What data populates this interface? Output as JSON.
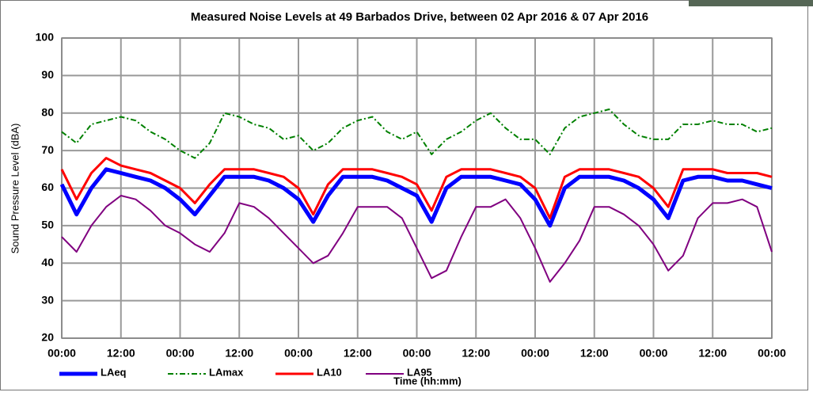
{
  "chart_data": {
    "type": "line",
    "title": "Measured Noise Levels at 49 Barbados Drive, between 02 Apr 2016 & 07 Apr 2016",
    "y_label": "Sound Pressure Level (dBA)",
    "x_label": "Time (hh:mm)",
    "categories": [
      "00:00",
      null,
      null,
      null,
      "12:00",
      null,
      null,
      null,
      "00:00",
      null,
      null,
      null,
      "12:00",
      null,
      null,
      null,
      "00:00",
      null,
      null,
      null,
      "12:00",
      null,
      null,
      null,
      "00:00",
      null,
      null,
      null,
      "12:00",
      null,
      null,
      null,
      "00:00",
      null,
      null,
      null,
      "12:00",
      null,
      null,
      null,
      "00:00",
      null,
      null,
      null,
      "12:00",
      null,
      null,
      null,
      "00:00"
    ],
    "ylim": [
      20,
      100
    ],
    "yticks": [
      20,
      30,
      40,
      50,
      60,
      70,
      80,
      90,
      100
    ],
    "grid": true,
    "series": [
      {
        "name": "LAeq",
        "color": "#0000ff",
        "width": 5,
        "dash": "solid",
        "values": [
          61,
          53,
          60,
          65,
          64,
          63,
          62,
          60,
          57,
          53,
          58,
          63,
          63,
          63,
          62,
          60,
          57,
          51,
          58,
          63,
          63,
          63,
          62,
          60,
          58,
          51,
          60,
          63,
          63,
          63,
          62,
          61,
          57,
          50,
          60,
          63,
          63,
          63,
          62,
          60,
          57,
          52,
          62,
          63,
          63,
          62,
          62,
          61,
          60
        ]
      },
      {
        "name": "LAmax",
        "color": "#008000",
        "width": 2,
        "dash": "dashdot",
        "values": [
          75,
          72,
          77,
          78,
          79,
          78,
          75,
          73,
          70,
          68,
          72,
          80,
          79,
          77,
          76,
          73,
          74,
          70,
          72,
          76,
          78,
          79,
          75,
          73,
          75,
          69,
          73,
          75,
          78,
          80,
          76,
          73,
          73,
          69,
          76,
          79,
          80,
          81,
          77,
          74,
          73,
          73,
          77,
          77,
          78,
          77,
          77,
          75,
          76
        ]
      },
      {
        "name": "LA10",
        "color": "#ff0000",
        "width": 3,
        "dash": "solid",
        "values": [
          65,
          57,
          64,
          68,
          66,
          65,
          64,
          62,
          60,
          56,
          61,
          65,
          65,
          65,
          64,
          63,
          60,
          53,
          61,
          65,
          65,
          65,
          64,
          63,
          61,
          54,
          63,
          65,
          65,
          65,
          64,
          63,
          60,
          52,
          63,
          65,
          65,
          65,
          64,
          63,
          60,
          55,
          65,
          65,
          65,
          64,
          64,
          64,
          63
        ]
      },
      {
        "name": "LA95",
        "color": "#800080",
        "width": 2,
        "dash": "solid",
        "values": [
          47,
          43,
          50,
          55,
          58,
          57,
          54,
          50,
          48,
          45,
          43,
          48,
          56,
          55,
          52,
          48,
          44,
          40,
          42,
          48,
          55,
          55,
          55,
          52,
          44,
          36,
          38,
          47,
          55,
          55,
          57,
          52,
          44,
          35,
          40,
          46,
          55,
          55,
          53,
          50,
          45,
          38,
          42,
          52,
          56,
          56,
          57,
          55,
          43
        ]
      }
    ]
  }
}
